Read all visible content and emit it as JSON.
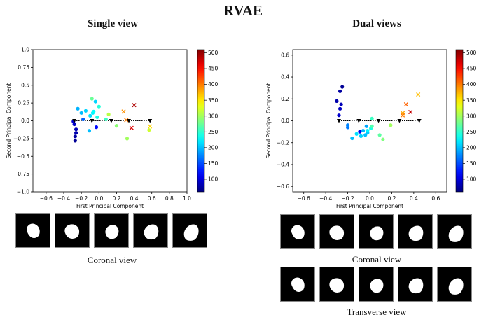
{
  "figure_title": "RVAE",
  "panels": {
    "left": {
      "subtitle": "Single view",
      "caption": "Coronal view"
    },
    "right": {
      "subtitle": "Dual views",
      "captions": [
        "Coronal view",
        "Transverse view"
      ]
    }
  },
  "colors": {
    "black_marker": "#000000",
    "thumb_bg": "#000000",
    "mask": "#ffffff"
  },
  "colorbar": {
    "min": 60,
    "max": 510,
    "ticks": [
      100,
      150,
      200,
      250,
      300,
      350,
      400,
      450,
      500
    ],
    "colormap": "jet"
  },
  "chart_data": [
    {
      "type": "scatter",
      "title": "Single view",
      "xlabel": "First Principal Component",
      "ylabel": "Second Principal Component",
      "xlim": [
        -0.75,
        1.0
      ],
      "ylim": [
        -1.0,
        1.0
      ],
      "xticks": [
        -0.6,
        -0.4,
        -0.2,
        0.0,
        0.2,
        0.4,
        0.6,
        0.8,
        1.0
      ],
      "yticks": [
        -1.0,
        -0.75,
        -0.5,
        -0.25,
        0.0,
        0.25,
        0.5,
        0.75,
        1.0
      ],
      "dotted_path": [
        [
          -0.28,
          0.0
        ],
        [
          0.58,
          0.0
        ]
      ],
      "triangles": [
        [
          -0.28,
          0.0
        ],
        [
          -0.08,
          0.0
        ],
        [
          0.14,
          0.0
        ],
        [
          0.34,
          0.0
        ],
        [
          0.58,
          0.0
        ]
      ],
      "points": [
        {
          "x": -0.27,
          "y": -0.28,
          "c": 70
        },
        {
          "x": -0.27,
          "y": -0.22,
          "c": 75
        },
        {
          "x": -0.26,
          "y": -0.17,
          "c": 80
        },
        {
          "x": -0.26,
          "y": -0.12,
          "c": 85
        },
        {
          "x": -0.28,
          "y": -0.05,
          "c": 90
        },
        {
          "x": -0.29,
          "y": -0.01,
          "c": 95
        },
        {
          "x": -0.03,
          "y": -0.09,
          "c": 120
        },
        {
          "x": -0.18,
          "y": 0.02,
          "c": 160
        },
        {
          "x": -0.24,
          "y": 0.17,
          "c": 195
        },
        {
          "x": -0.2,
          "y": 0.11,
          "c": 200
        },
        {
          "x": -0.15,
          "y": 0.14,
          "c": 210
        },
        {
          "x": -0.1,
          "y": 0.07,
          "c": 215
        },
        {
          "x": -0.07,
          "y": 0.11,
          "c": 225
        },
        {
          "x": -0.06,
          "y": 0.13,
          "c": 230
        },
        {
          "x": -0.04,
          "y": 0.27,
          "c": 210
        },
        {
          "x": -0.02,
          "y": 0.05,
          "c": 240
        },
        {
          "x": 0.0,
          "y": 0.2,
          "c": 245
        },
        {
          "x": -0.11,
          "y": -0.14,
          "c": 200
        },
        {
          "x": 0.08,
          "y": 0.02,
          "c": 255
        },
        {
          "x": -0.08,
          "y": 0.31,
          "c": 275
        },
        {
          "x": 0.11,
          "y": 0.09,
          "c": 310
        },
        {
          "x": 0.2,
          "y": -0.07,
          "c": 290
        },
        {
          "x": 0.32,
          "y": -0.25,
          "c": 300
        },
        {
          "x": 0.57,
          "y": -0.13,
          "c": 320
        }
      ],
      "crosses": [
        {
          "x": 0.28,
          "y": 0.13,
          "c": 390
        },
        {
          "x": 0.31,
          "y": 0.01,
          "c": 400
        },
        {
          "x": 0.4,
          "y": 0.22,
          "c": 490
        },
        {
          "x": 0.37,
          "y": -0.1,
          "c": 470
        },
        {
          "x": 0.58,
          "y": -0.08,
          "c": 360
        }
      ]
    },
    {
      "type": "scatter",
      "title": "Dual views",
      "xlabel": "First Principal Component",
      "ylabel": "Second Principal Component",
      "xlim": [
        -0.7,
        0.7
      ],
      "ylim": [
        -0.65,
        0.65
      ],
      "xticks": [
        -0.6,
        -0.4,
        -0.2,
        0.0,
        0.2,
        0.4,
        0.6
      ],
      "yticks": [
        -0.6,
        -0.4,
        -0.2,
        0.0,
        0.2,
        0.4,
        0.6
      ],
      "dotted_path": [
        [
          -0.28,
          0.0
        ],
        [
          0.45,
          0.0
        ]
      ],
      "triangles": [
        [
          -0.28,
          0.0
        ],
        [
          -0.1,
          0.0
        ],
        [
          0.08,
          0.0
        ],
        [
          0.27,
          0.0
        ],
        [
          0.45,
          0.0
        ]
      ],
      "points": [
        {
          "x": -0.25,
          "y": 0.31,
          "c": 70
        },
        {
          "x": -0.27,
          "y": 0.27,
          "c": 75
        },
        {
          "x": -0.3,
          "y": 0.18,
          "c": 80
        },
        {
          "x": -0.26,
          "y": 0.15,
          "c": 85
        },
        {
          "x": -0.27,
          "y": 0.11,
          "c": 90
        },
        {
          "x": -0.28,
          "y": 0.05,
          "c": 95
        },
        {
          "x": -0.09,
          "y": -0.1,
          "c": 110
        },
        {
          "x": -0.2,
          "y": -0.06,
          "c": 170
        },
        {
          "x": -0.2,
          "y": -0.04,
          "c": 175
        },
        {
          "x": -0.03,
          "y": -0.05,
          "c": 190
        },
        {
          "x": -0.06,
          "y": -0.09,
          "c": 195
        },
        {
          "x": -0.04,
          "y": -0.13,
          "c": 200
        },
        {
          "x": -0.02,
          "y": -0.11,
          "c": 205
        },
        {
          "x": -0.08,
          "y": -0.14,
          "c": 210
        },
        {
          "x": -0.12,
          "y": -0.12,
          "c": 215
        },
        {
          "x": -0.16,
          "y": -0.16,
          "c": 200
        },
        {
          "x": -0.02,
          "y": -0.09,
          "c": 225
        },
        {
          "x": 0.01,
          "y": -0.07,
          "c": 240
        },
        {
          "x": 0.02,
          "y": 0.02,
          "c": 255
        },
        {
          "x": 0.02,
          "y": -0.05,
          "c": 265
        },
        {
          "x": 0.09,
          "y": -0.13,
          "c": 270
        },
        {
          "x": 0.12,
          "y": -0.17,
          "c": 285
        },
        {
          "x": 0.19,
          "y": -0.04,
          "c": 300
        }
      ],
      "crosses": [
        {
          "x": 0.3,
          "y": 0.07,
          "c": 380
        },
        {
          "x": 0.3,
          "y": 0.05,
          "c": 400
        },
        {
          "x": 0.33,
          "y": 0.15,
          "c": 410
        },
        {
          "x": 0.37,
          "y": 0.08,
          "c": 480
        },
        {
          "x": 0.44,
          "y": 0.24,
          "c": 370
        }
      ]
    }
  ]
}
